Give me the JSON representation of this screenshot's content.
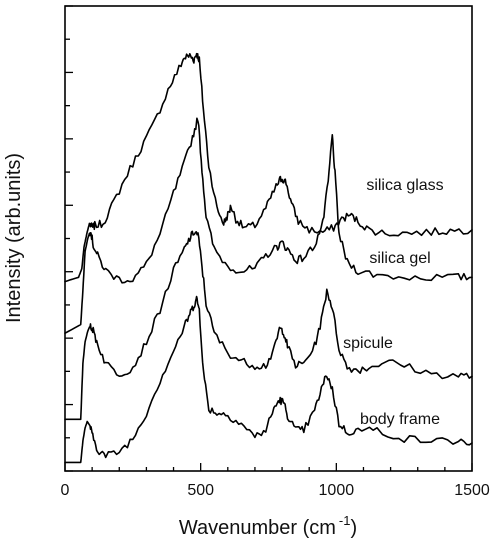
{
  "chart_data": {
    "type": "line",
    "xlabel": "Wavenumber (cm",
    "xlabel_superscript": "-1",
    "xlabel_close": ")",
    "ylabel": "Intensity (arb.units)",
    "xlim": [
      0,
      1500
    ],
    "x_ticks": [
      0,
      500,
      1000,
      1500
    ],
    "x_tick_labels": [
      "0",
      "500",
      "1000",
      "1500"
    ],
    "y_tick_labels_shown": false,
    "grid": false,
    "legend": "none",
    "series": [
      {
        "name": "silica glass",
        "x": [
          0,
          50,
          62,
          70,
          80,
          90,
          100,
          110,
          140,
          180,
          230,
          280,
          330,
          380,
          420,
          440,
          460,
          475,
          485,
          495,
          510,
          530,
          560,
          585,
          600,
          612,
          630,
          660,
          700,
          740,
          770,
          790,
          800,
          815,
          835,
          860,
          900,
          950,
          990,
          1020,
          1050,
          1080,
          1120,
          1180,
          1260,
          1350,
          1420,
          1500
        ],
        "y": [
          1.2,
          1.3,
          1.5,
          2.0,
          2.3,
          2.55,
          2.45,
          2.5,
          2.55,
          3.05,
          3.7,
          4.3,
          4.9,
          5.65,
          6.15,
          6.4,
          6.45,
          6.35,
          6.5,
          6.35,
          5.2,
          3.9,
          2.9,
          2.55,
          2.75,
          2.95,
          2.65,
          2.45,
          2.5,
          2.9,
          3.3,
          3.55,
          3.6,
          3.5,
          3.0,
          2.6,
          2.4,
          2.35,
          2.45,
          2.65,
          2.75,
          2.6,
          2.4,
          2.32,
          2.33,
          2.35,
          2.38,
          2.4
        ]
      },
      {
        "name": "silica gel",
        "x": [
          0,
          58,
          66,
          74,
          84,
          94,
          104,
          120,
          150,
          200,
          250,
          300,
          350,
          400,
          440,
          470,
          490,
          505,
          520,
          550,
          600,
          650,
          700,
          740,
          780,
          800,
          820,
          850,
          880,
          920,
          950,
          970,
          985,
          995,
          1010,
          1040,
          1080,
          1150,
          1250,
          1350,
          1450,
          1500
        ],
        "y": [
          0.0,
          0.2,
          1.0,
          1.9,
          2.2,
          2.4,
          2.05,
          1.8,
          1.45,
          1.25,
          1.25,
          1.6,
          2.3,
          3.25,
          3.95,
          4.55,
          5.0,
          3.8,
          2.7,
          1.95,
          1.55,
          1.45,
          1.5,
          1.8,
          2.0,
          2.1,
          1.95,
          1.7,
          1.75,
          2.05,
          2.55,
          3.5,
          4.6,
          3.7,
          2.3,
          1.65,
          1.45,
          1.35,
          1.3,
          1.3,
          1.3,
          1.3
        ]
      },
      {
        "name": "spicule",
        "x": [
          0,
          58,
          66,
          74,
          84,
          94,
          104,
          120,
          150,
          200,
          250,
          300,
          350,
          400,
          440,
          460,
          475,
          490,
          505,
          520,
          550,
          600,
          650,
          700,
          740,
          770,
          790,
          805,
          820,
          850,
          880,
          920,
          945,
          965,
          985,
          1010,
          1040,
          1080,
          1120,
          1180,
          1250,
          1350,
          1450,
          1500
        ],
        "y": [
          -2.0,
          -2.0,
          -0.7,
          -0.2,
          0.05,
          0.2,
          0.05,
          -0.25,
          -0.7,
          -0.95,
          -0.8,
          -0.2,
          0.55,
          1.45,
          1.95,
          2.2,
          2.35,
          2.3,
          1.55,
          0.7,
          0.0,
          -0.45,
          -0.65,
          -0.75,
          -0.75,
          -0.4,
          0.1,
          0.05,
          -0.3,
          -0.75,
          -0.7,
          -0.3,
          0.3,
          1.0,
          0.6,
          -0.35,
          -0.8,
          -0.85,
          -0.8,
          -0.65,
          -0.75,
          -0.95,
          -0.98,
          -1.0
        ]
      },
      {
        "name": "body frame",
        "x": [
          0,
          58,
          66,
          74,
          82,
          92,
          102,
          120,
          150,
          200,
          250,
          300,
          350,
          400,
          440,
          460,
          475,
          485,
          495,
          510,
          530,
          560,
          600,
          650,
          700,
          740,
          770,
          790,
          805,
          820,
          850,
          880,
          920,
          945,
          965,
          985,
          1010,
          1040,
          1080,
          1150,
          1250,
          1350,
          1450,
          1500
        ],
        "y": [
          -3.0,
          -3.0,
          -2.5,
          -2.2,
          -2.05,
          -2.15,
          -2.4,
          -2.7,
          -2.85,
          -2.75,
          -2.45,
          -1.85,
          -1.1,
          -0.4,
          0.15,
          0.45,
          0.65,
          0.8,
          0.55,
          -0.9,
          -1.75,
          -1.85,
          -1.9,
          -2.1,
          -2.4,
          -2.25,
          -1.75,
          -1.55,
          -1.6,
          -1.9,
          -2.25,
          -2.25,
          -1.8,
          -1.3,
          -0.95,
          -1.3,
          -2.1,
          -2.3,
          -2.25,
          -2.25,
          -2.45,
          -2.5,
          -2.5,
          -2.55
        ]
      }
    ]
  }
}
